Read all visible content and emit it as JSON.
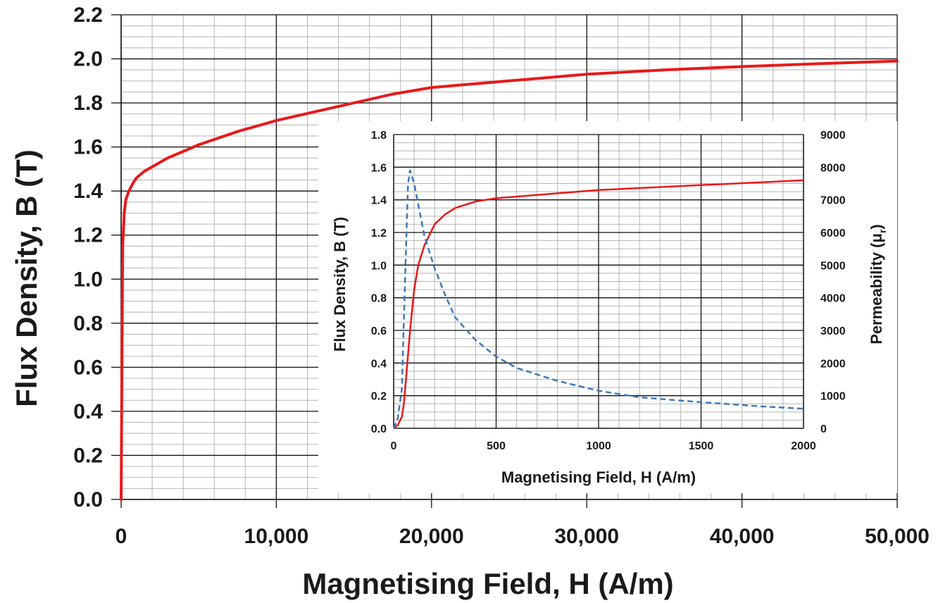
{
  "chart_data": [
    {
      "type": "line",
      "title": "",
      "xlabel": "Magnetising Field, H (A/m)",
      "ylabel": "Flux Density, B (T)",
      "xlim": [
        0,
        50000
      ],
      "ylim": [
        0,
        2.2
      ],
      "x_ticks": [
        "0",
        "10,000",
        "20,000",
        "30,000",
        "40,000",
        "50,000"
      ],
      "y_ticks": [
        "0.0",
        "0.2",
        "0.4",
        "0.6",
        "0.8",
        "1.0",
        "1.2",
        "1.4",
        "1.6",
        "1.8",
        "2.0",
        "2.2"
      ],
      "grid": true,
      "series": [
        {
          "color": "#e8191b",
          "style": "solid",
          "x": [
            0,
            50,
            100,
            200,
            300,
            500,
            800,
            1000,
            1500,
            2000,
            3000,
            5000,
            7500,
            10000,
            12500,
            15000,
            17500,
            20000,
            25000,
            30000,
            35000,
            40000,
            45000,
            50000
          ],
          "y": [
            0.0,
            0.6,
            1.15,
            1.3,
            1.36,
            1.4,
            1.44,
            1.46,
            1.49,
            1.51,
            1.55,
            1.61,
            1.67,
            1.72,
            1.76,
            1.8,
            1.84,
            1.87,
            1.9,
            1.93,
            1.95,
            1.965,
            1.978,
            1.99
          ]
        }
      ]
    },
    {
      "type": "line",
      "title": "",
      "xlabel": "Magnetising Field, H (A/m)",
      "ylabel": "Flux Density, B (T)",
      "y2label_main": "Permeability (μ",
      "y2label_sub": "r",
      "y2label_end": ")",
      "xlim": [
        0,
        2000
      ],
      "ylim": [
        0,
        1.8
      ],
      "y2lim": [
        0,
        9000
      ],
      "x_ticks": [
        "0",
        "500",
        "1000",
        "1500",
        "2000"
      ],
      "y_ticks": [
        "0.0",
        "0.2",
        "0.4",
        "0.6",
        "0.8",
        "1.0",
        "1.2",
        "1.4",
        "1.6",
        "1.8"
      ],
      "y2_ticks": [
        "0",
        "1000",
        "2000",
        "3000",
        "4000",
        "5000",
        "6000",
        "7000",
        "8000",
        "9000"
      ],
      "grid": true,
      "series": [
        {
          "axis": "left",
          "color": "#e8191b",
          "style": "solid",
          "x": [
            0,
            20,
            40,
            50,
            60,
            80,
            100,
            120,
            150,
            200,
            250,
            300,
            400,
            500,
            700,
            1000,
            1500,
            2000
          ],
          "y": [
            0.0,
            0.02,
            0.07,
            0.15,
            0.3,
            0.6,
            0.85,
            1.0,
            1.12,
            1.25,
            1.31,
            1.35,
            1.39,
            1.41,
            1.43,
            1.46,
            1.49,
            1.52
          ]
        },
        {
          "axis": "right",
          "color": "#3d7ab8",
          "style": "dashed",
          "x": [
            0,
            20,
            40,
            60,
            70,
            80,
            100,
            150,
            200,
            250,
            300,
            400,
            500,
            600,
            800,
            1000,
            1200,
            1500,
            1800,
            2000
          ],
          "y": [
            0,
            300,
            1200,
            5500,
            7500,
            7900,
            7500,
            5900,
            4900,
            4100,
            3400,
            2700,
            2200,
            1850,
            1450,
            1150,
            950,
            800,
            670,
            600
          ]
        }
      ]
    }
  ]
}
